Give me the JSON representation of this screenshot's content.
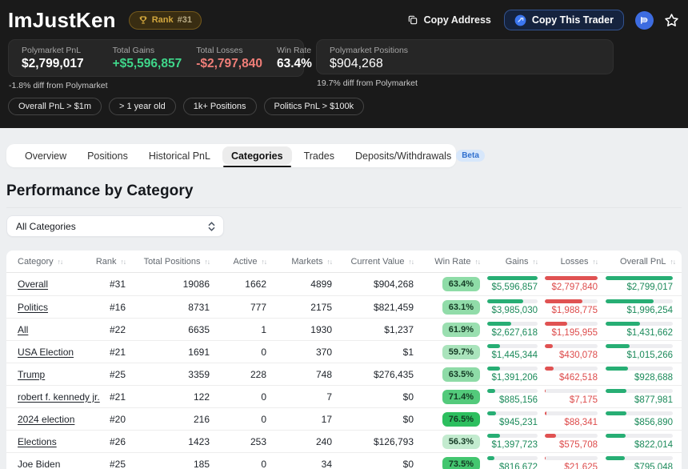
{
  "header": {
    "trader_name": "ImJustKen",
    "rank_badge": {
      "label": "Rank",
      "value": "#31"
    },
    "copy_address_label": "Copy Address",
    "copy_trader_label": "Copy This Trader"
  },
  "stats": {
    "box1": {
      "items": [
        {
          "label": "Polymarket PnL",
          "value": "$2,799,017"
        },
        {
          "label": "Total Gains",
          "value": "+$5,596,857"
        },
        {
          "label": "Total Losses",
          "value": "-$2,797,840"
        },
        {
          "label": "Win Rate",
          "value": "63.4%"
        }
      ],
      "footnote": "-1.8% diff from Polymarket"
    },
    "box2": {
      "label": "Polymarket Positions",
      "value": "$904,268",
      "footnote": "19.7% diff from Polymarket"
    }
  },
  "chips": [
    "Overall PnL > $1m",
    "> 1 year old",
    "1k+ Positions",
    "Politics PnL > $100k"
  ],
  "tabs": [
    {
      "label": "Overview",
      "active": false
    },
    {
      "label": "Positions",
      "active": false
    },
    {
      "label": "Historical PnL",
      "active": false
    },
    {
      "label": "Categories",
      "active": true
    },
    {
      "label": "Trades",
      "active": false
    },
    {
      "label": "Deposits/Withdrawals",
      "active": false,
      "badge": "Beta"
    }
  ],
  "section": {
    "title": "Performance by Category",
    "category_filter_value": "All Categories"
  },
  "icons": {
    "sort_glyph": "↑↓"
  },
  "colors": {
    "accent_green": "#3fd68a",
    "accent_red": "#ef7e78",
    "bar_green": "#27ae74",
    "bar_red": "#e05252",
    "gains_text": "#1b8a5a",
    "losses_text": "#dd4b4b",
    "pnl_text": "#1b8a5a",
    "beta_blue": "#2f6fce",
    "win_rate_scale": [
      "#cdeed6",
      "#29be5c"
    ],
    "win_rate_scale_domain": [
      55,
      77
    ]
  },
  "table": {
    "columns": [
      "Category",
      "Rank",
      "Total Positions",
      "Active",
      "Markets",
      "Current Value",
      "Win Rate",
      "Gains",
      "Losses",
      "Overall PnL"
    ],
    "max": {
      "gains": 5596857,
      "losses": 2797840,
      "pnl": 2799017
    },
    "rows": [
      {
        "category": "Overall",
        "rank": "#31",
        "total_positions": "19086",
        "active": "1662",
        "markets": "4899",
        "current_value": "$904,268",
        "win_rate": "63.4%",
        "win_rate_value": 63.4,
        "gains": 5596857,
        "gains_label": "$5,596,857",
        "losses": 2797840,
        "losses_label": "$2,797,840",
        "pnl": 2799017,
        "pnl_label": "$2,799,017"
      },
      {
        "category": "Politics",
        "rank": "#16",
        "total_positions": "8731",
        "active": "777",
        "markets": "2175",
        "current_value": "$821,459",
        "win_rate": "63.1%",
        "win_rate_value": 63.1,
        "gains": 3985030,
        "gains_label": "$3,985,030",
        "losses": 1988775,
        "losses_label": "$1,988,775",
        "pnl": 1996254,
        "pnl_label": "$1,996,254"
      },
      {
        "category": "All",
        "rank": "#22",
        "total_positions": "6635",
        "active": "1",
        "markets": "1930",
        "current_value": "$1,237",
        "win_rate": "61.9%",
        "win_rate_value": 61.9,
        "gains": 2627618,
        "gains_label": "$2,627,618",
        "losses": 1195955,
        "losses_label": "$1,195,955",
        "pnl": 1431662,
        "pnl_label": "$1,431,662"
      },
      {
        "category": "USA Election",
        "rank": "#21",
        "total_positions": "1691",
        "active": "0",
        "markets": "370",
        "current_value": "$1",
        "win_rate": "59.7%",
        "win_rate_value": 59.7,
        "gains": 1445344,
        "gains_label": "$1,445,344",
        "losses": 430078,
        "losses_label": "$430,078",
        "pnl": 1015266,
        "pnl_label": "$1,015,266"
      },
      {
        "category": "Trump",
        "rank": "#25",
        "total_positions": "3359",
        "active": "228",
        "markets": "748",
        "current_value": "$276,435",
        "win_rate": "63.5%",
        "win_rate_value": 63.5,
        "gains": 1391206,
        "gains_label": "$1,391,206",
        "losses": 462518,
        "losses_label": "$462,518",
        "pnl": 928688,
        "pnl_label": "$928,688"
      },
      {
        "category": "robert f. kennedy jr.",
        "rank": "#21",
        "total_positions": "122",
        "active": "0",
        "markets": "7",
        "current_value": "$0",
        "win_rate": "71.4%",
        "win_rate_value": 71.4,
        "gains": 885156,
        "gains_label": "$885,156",
        "losses": 7175,
        "losses_label": "$7,175",
        "pnl": 877981,
        "pnl_label": "$877,981"
      },
      {
        "category": "2024 election",
        "rank": "#20",
        "total_positions": "216",
        "active": "0",
        "markets": "17",
        "current_value": "$0",
        "win_rate": "76.5%",
        "win_rate_value": 76.5,
        "gains": 945231,
        "gains_label": "$945,231",
        "losses": 88341,
        "losses_label": "$88,341",
        "pnl": 856890,
        "pnl_label": "$856,890"
      },
      {
        "category": "Elections",
        "rank": "#26",
        "total_positions": "1423",
        "active": "253",
        "markets": "240",
        "current_value": "$126,793",
        "win_rate": "56.3%",
        "win_rate_value": 56.3,
        "gains": 1397723,
        "gains_label": "$1,397,723",
        "losses": 575708,
        "losses_label": "$575,708",
        "pnl": 822014,
        "pnl_label": "$822,014"
      },
      {
        "category": "Joe Biden",
        "rank": "#25",
        "total_positions": "185",
        "active": "0",
        "markets": "34",
        "current_value": "$0",
        "win_rate": "73.5%",
        "win_rate_value": 73.5,
        "gains": 816672,
        "gains_label": "$816,672",
        "losses": 21625,
        "losses_label": "$21,625",
        "pnl": 795048,
        "pnl_label": "$795,048"
      }
    ]
  }
}
